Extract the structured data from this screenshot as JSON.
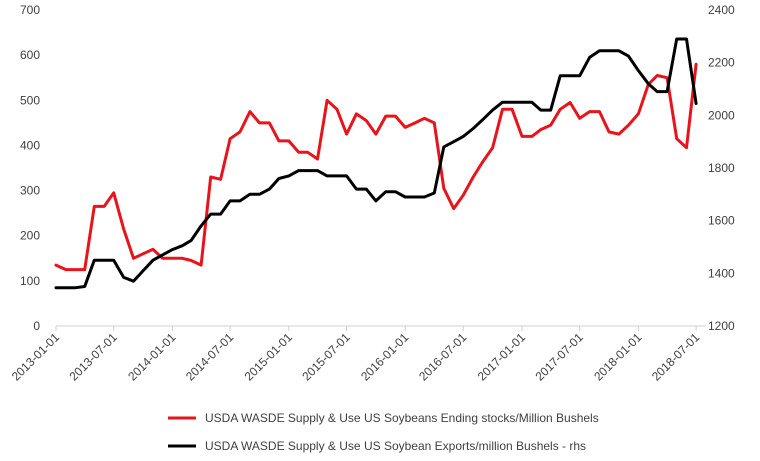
{
  "chart_data": {
    "type": "line",
    "grid": false,
    "legend_position": "bottom",
    "title": "",
    "x_ticks": [
      "2013-01-01",
      "2013-07-01",
      "2014-01-01",
      "2014-07-01",
      "2015-01-01",
      "2015-07-01",
      "2016-01-01",
      "2016-07-01",
      "2017-01-01",
      "2017-07-01",
      "2018-01-01",
      "2018-07-01"
    ],
    "y_left": {
      "ylim": [
        0,
        700
      ],
      "ticks": [
        "0",
        "100",
        "200",
        "300",
        "400",
        "500",
        "600",
        "700"
      ]
    },
    "y_right": {
      "ylim": [
        1200,
        2400
      ],
      "ticks": [
        "1200",
        "1400",
        "1600",
        "1800",
        "2000",
        "2200",
        "2400"
      ]
    },
    "colors": {
      "stocks": "#e8141b",
      "exports": "#000000"
    },
    "series": [
      {
        "name": "USDA WASDE Supply & Use US Soybeans Ending stocks/Million Bushels",
        "axis": "left",
        "color": "#e8141b",
        "x": [
          "2013-01",
          "2013-02",
          "2013-03",
          "2013-04",
          "2013-05",
          "2013-06",
          "2013-07",
          "2013-08",
          "2013-09",
          "2013-10",
          "2013-11",
          "2013-12",
          "2014-01",
          "2014-02",
          "2014-03",
          "2014-04",
          "2014-05",
          "2014-06",
          "2014-07",
          "2014-08",
          "2014-09",
          "2014-10",
          "2014-11",
          "2014-12",
          "2015-01",
          "2015-02",
          "2015-03",
          "2015-04",
          "2015-05",
          "2015-06",
          "2015-07",
          "2015-08",
          "2015-09",
          "2015-10",
          "2015-11",
          "2015-12",
          "2016-01",
          "2016-02",
          "2016-03",
          "2016-04",
          "2016-05",
          "2016-06",
          "2016-07",
          "2016-08",
          "2016-09",
          "2016-10",
          "2016-11",
          "2016-12",
          "2017-01",
          "2017-02",
          "2017-03",
          "2017-04",
          "2017-05",
          "2017-06",
          "2017-07",
          "2017-08",
          "2017-09",
          "2017-10",
          "2017-11",
          "2017-12",
          "2018-01",
          "2018-02",
          "2018-03",
          "2018-04",
          "2018-05",
          "2018-06",
          "2018-07"
        ],
        "values": [
          135,
          125,
          125,
          125,
          265,
          265,
          295,
          215,
          150,
          160,
          170,
          150,
          150,
          150,
          145,
          135,
          330,
          325,
          415,
          430,
          475,
          450,
          450,
          410,
          410,
          385,
          385,
          370,
          500,
          480,
          425,
          470,
          455,
          425,
          465,
          465,
          440,
          450,
          460,
          450,
          305,
          260,
          290,
          330,
          365,
          395,
          480,
          480,
          420,
          420,
          435,
          445,
          480,
          495,
          460,
          475,
          475,
          430,
          425,
          445,
          470,
          535,
          555,
          550,
          415,
          395,
          580
        ]
      },
      {
        "name": "USDA WASDE Supply & Use US Soybean Exports/million Bushels - rhs",
        "axis": "right",
        "color": "#000000",
        "x": [
          "2013-01",
          "2013-02",
          "2013-03",
          "2013-04",
          "2013-05",
          "2013-06",
          "2013-07",
          "2013-08",
          "2013-09",
          "2013-10",
          "2013-11",
          "2013-12",
          "2014-01",
          "2014-02",
          "2014-03",
          "2014-04",
          "2014-05",
          "2014-06",
          "2014-07",
          "2014-08",
          "2014-09",
          "2014-10",
          "2014-11",
          "2014-12",
          "2015-01",
          "2015-02",
          "2015-03",
          "2015-04",
          "2015-05",
          "2015-06",
          "2015-07",
          "2015-08",
          "2015-09",
          "2015-10",
          "2015-11",
          "2015-12",
          "2016-01",
          "2016-02",
          "2016-03",
          "2016-04",
          "2016-05",
          "2016-06",
          "2016-07",
          "2016-08",
          "2016-09",
          "2016-10",
          "2016-11",
          "2016-12",
          "2017-01",
          "2017-02",
          "2017-03",
          "2017-04",
          "2017-05",
          "2017-06",
          "2017-07",
          "2017-08",
          "2017-09",
          "2017-10",
          "2017-11",
          "2017-12",
          "2018-01",
          "2018-02",
          "2018-03",
          "2018-04",
          "2018-05",
          "2018-06",
          "2018-07"
        ],
        "values": [
          1345,
          1345,
          1345,
          1350,
          1450,
          1450,
          1450,
          1385,
          1370,
          1410,
          1450,
          1470,
          1490,
          1505,
          1525,
          1580,
          1625,
          1625,
          1675,
          1675,
          1700,
          1700,
          1720,
          1760,
          1770,
          1790,
          1790,
          1790,
          1770,
          1770,
          1770,
          1720,
          1720,
          1675,
          1710,
          1710,
          1690,
          1690,
          1690,
          1705,
          1880,
          1900,
          1920,
          1950,
          1985,
          2020,
          2050,
          2050,
          2050,
          2050,
          2020,
          2020,
          2150,
          2150,
          2150,
          2220,
          2245,
          2245,
          2245,
          2225,
          2170,
          2120,
          2090,
          2090,
          2290,
          2290,
          2045
        ]
      }
    ]
  }
}
